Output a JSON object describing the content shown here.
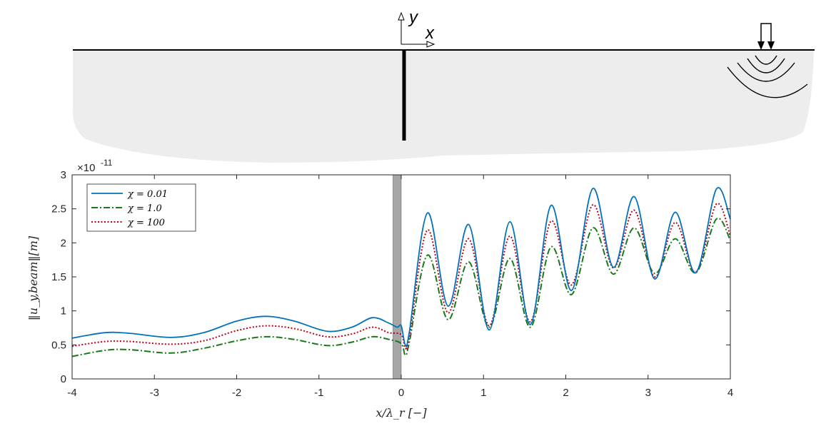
{
  "schematic": {
    "axis_y_label": "y",
    "axis_x_label": "x"
  },
  "chart_data": {
    "type": "line",
    "xlabel": "x/λ_r [−]",
    "ylabel": "‖u_y,beam‖[m]",
    "y_exponent_label": "×10",
    "y_exponent_power": "-11",
    "xlim": [
      -4,
      4
    ],
    "ylim": [
      0,
      3
    ],
    "x_ticks": [
      -4,
      -3,
      -2,
      -1,
      0,
      1,
      2,
      3,
      4
    ],
    "x_tick_labels": [
      "-4",
      "-3",
      "-2",
      "-1",
      "0",
      "1",
      "2",
      "3",
      "4"
    ],
    "y_ticks": [
      0,
      0.5,
      1,
      1.5,
      2,
      2.5,
      3
    ],
    "y_tick_labels": [
      "0",
      "0.5",
      "1",
      "1.5",
      "2",
      "2.5",
      "3"
    ],
    "grid": false,
    "legend_position": "top-left",
    "shaded_region": {
      "x0": -0.1,
      "x1": 0.0,
      "color": "#a6a6a6"
    },
    "series": [
      {
        "name": "χ = 0.01",
        "color": "#0072BD",
        "dash": "solid",
        "x": [
          -4.0,
          -3.6,
          -3.3,
          -2.8,
          -2.4,
          -2.0,
          -1.65,
          -1.3,
          -0.9,
          -0.6,
          -0.35,
          -0.15,
          -0.05,
          0.0,
          0.05,
          0.1,
          0.32,
          0.57,
          0.82,
          1.07,
          1.32,
          1.57,
          1.82,
          2.07,
          2.33,
          2.58,
          2.83,
          3.08,
          3.33,
          3.58,
          3.83,
          4.0
        ],
        "y": [
          0.6,
          0.68,
          0.67,
          0.61,
          0.68,
          0.85,
          0.92,
          0.85,
          0.7,
          0.76,
          0.9,
          0.82,
          0.76,
          0.78,
          0.5,
          0.7,
          2.44,
          1.07,
          2.27,
          0.72,
          2.31,
          0.8,
          2.55,
          1.3,
          2.8,
          1.64,
          2.68,
          1.47,
          2.45,
          1.56,
          2.79,
          2.35
        ]
      },
      {
        "name": "χ = 1.0",
        "color": "#1A7A1A",
        "dash": "dashdot",
        "x": [
          -4.0,
          -3.6,
          -3.3,
          -2.8,
          -2.4,
          -2.0,
          -1.65,
          -1.3,
          -0.9,
          -0.6,
          -0.35,
          -0.15,
          0.0,
          0.05,
          0.1,
          0.32,
          0.57,
          0.82,
          1.07,
          1.32,
          1.57,
          1.82,
          2.07,
          2.33,
          2.58,
          2.83,
          3.08,
          3.33,
          3.58,
          3.83,
          4.0
        ],
        "y": [
          0.33,
          0.42,
          0.43,
          0.38,
          0.45,
          0.56,
          0.62,
          0.58,
          0.49,
          0.54,
          0.62,
          0.58,
          0.52,
          0.35,
          0.55,
          1.82,
          0.87,
          1.72,
          0.76,
          1.77,
          0.76,
          1.94,
          1.24,
          2.22,
          1.54,
          2.22,
          1.55,
          2.06,
          1.56,
          2.35,
          2.04
        ]
      },
      {
        "name": "χ = 100",
        "color": "#C0001A",
        "dash": "dotted",
        "x": [
          -4.0,
          -3.6,
          -3.3,
          -2.8,
          -2.4,
          -2.0,
          -1.65,
          -1.3,
          -0.9,
          -0.6,
          -0.35,
          -0.15,
          0.0,
          0.05,
          0.1,
          0.32,
          0.57,
          0.82,
          1.07,
          1.32,
          1.57,
          1.82,
          2.07,
          2.33,
          2.58,
          2.83,
          3.08,
          3.33,
          3.58,
          3.83,
          4.0
        ],
        "y": [
          0.48,
          0.55,
          0.55,
          0.51,
          0.56,
          0.71,
          0.78,
          0.74,
          0.62,
          0.66,
          0.76,
          0.68,
          0.65,
          0.45,
          0.62,
          2.19,
          0.97,
          2.06,
          0.78,
          2.1,
          0.84,
          2.32,
          1.38,
          2.56,
          1.63,
          2.48,
          1.5,
          2.3,
          1.57,
          2.57,
          2.1
        ]
      }
    ]
  }
}
